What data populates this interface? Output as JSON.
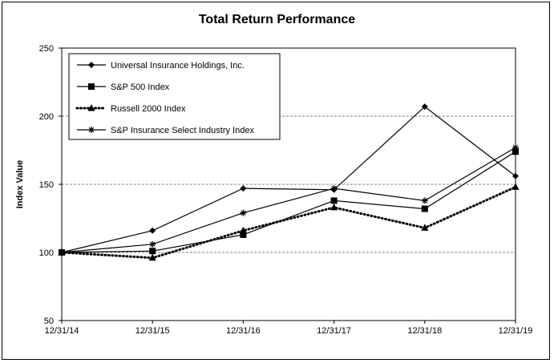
{
  "chart_data": {
    "type": "line",
    "title": "Total Return Performance",
    "xlabel": "",
    "ylabel": "Index Value",
    "categories": [
      "12/31/14",
      "12/31/15",
      "12/31/16",
      "12/31/17",
      "12/31/18",
      "12/31/19"
    ],
    "ylim": [
      50,
      250
    ],
    "yticks": [
      50,
      100,
      150,
      200,
      250
    ],
    "grid": "horizontal dashed at 100, 150, 200",
    "legend_position": "top-left",
    "series": [
      {
        "name": "Universal Insurance Holdings, Inc.",
        "marker": "diamond",
        "line": "solid",
        "values": [
          100,
          116,
          147,
          146,
          207,
          156
        ]
      },
      {
        "name": "S&P 500 Index",
        "marker": "square",
        "line": "solid",
        "values": [
          100,
          101,
          113,
          138,
          132,
          174
        ]
      },
      {
        "name": "Russell 2000 Index",
        "marker": "triangle",
        "line": "dotted",
        "values": [
          100,
          96,
          116,
          133,
          118,
          148
        ]
      },
      {
        "name": "S&P Insurance Select Industry Index",
        "marker": "asterisk",
        "line": "solid",
        "values": [
          100,
          106,
          129,
          147,
          138,
          177
        ]
      }
    ]
  }
}
